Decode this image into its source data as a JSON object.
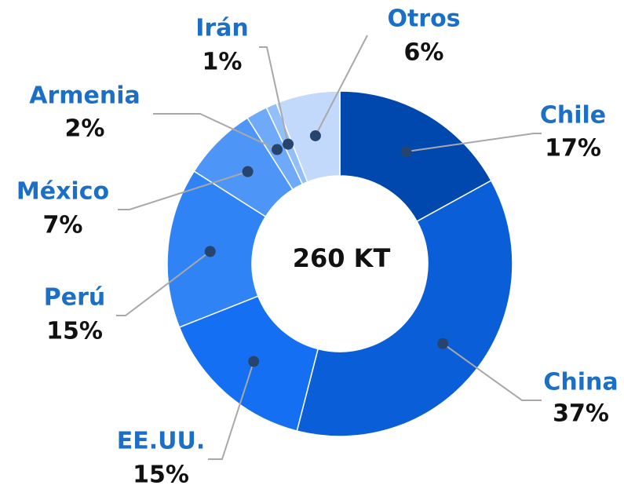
{
  "chart_data": {
    "type": "donut",
    "center_label": "260 KT",
    "categories": [
      "Chile",
      "China",
      "EE.UU.",
      "Perú",
      "México",
      "Armenia",
      "Irán",
      "Otros"
    ],
    "values": [
      17,
      37,
      15,
      15,
      7,
      2,
      1,
      6
    ],
    "value_labels": [
      "17%",
      "37%",
      "15%",
      "15%",
      "7%",
      "2%",
      "1%",
      "6%"
    ],
    "colors": [
      "#0048ad",
      "#0a5fd8",
      "#146ff2",
      "#2f83f4",
      "#4d95f6",
      "#6eaaf8",
      "#93bff9",
      "#c2d9fb"
    ]
  }
}
